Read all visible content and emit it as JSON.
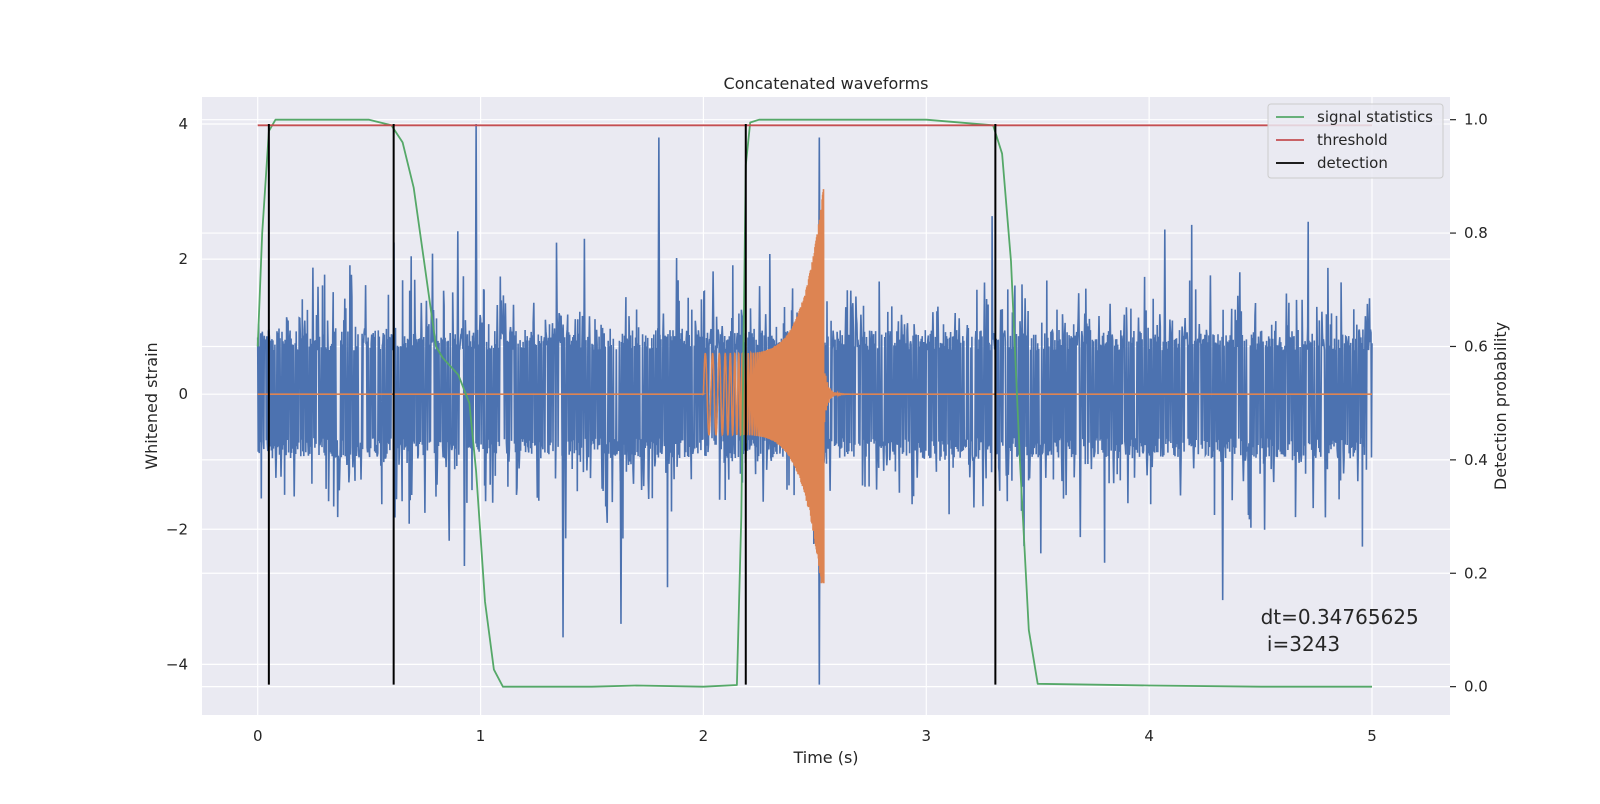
{
  "chart_data": {
    "type": "line",
    "title": "Concatenated waveforms",
    "xlabel": "Time (s)",
    "ylabel": "Whitened strain",
    "y2label": "Detection probability",
    "xlim": [
      -0.25,
      5.35
    ],
    "ylim": [
      -4.75,
      4.4
    ],
    "y2lim": [
      -0.05,
      1.04
    ],
    "xticks": [
      0,
      1,
      2,
      3,
      4,
      5
    ],
    "xtick_labels": [
      "0",
      "1",
      "2",
      "3",
      "4",
      "5"
    ],
    "yticks": [
      4,
      2,
      0,
      -2,
      -4
    ],
    "ytick_labels": [
      "4",
      "2",
      "0",
      "−2",
      "−4"
    ],
    "y2ticks": [
      1.0,
      0.8,
      0.6,
      0.4,
      0.2,
      0.0
    ],
    "y2tick_labels": [
      "1.0",
      "0.8",
      "0.6",
      "0.4",
      "0.2",
      "0.0"
    ],
    "grid": true,
    "legend": {
      "placement": "top-right",
      "entries": [
        {
          "label": "signal statistics",
          "color": "#55a868"
        },
        {
          "label": "threshold",
          "color": "#c44e52"
        },
        {
          "label": "detection",
          "color": "#000000"
        }
      ]
    },
    "annotation": {
      "line1": "dt=0.34765625",
      "line2": " i=3243",
      "x": 4.5,
      "y1": -3.4,
      "y2": -3.8
    },
    "series": [
      {
        "name": "noise",
        "axis": "left",
        "style": "noise",
        "color": "#4c72b0",
        "x_range": [
          0,
          5
        ],
        "band": 2.2,
        "peaks": [
          {
            "x": 0.98,
            "y": 4.0
          },
          {
            "x": 1.8,
            "y": 3.8
          },
          {
            "x": 2.52,
            "y": 3.8
          },
          {
            "x": 2.52,
            "y": -4.3
          },
          {
            "x": 4.33,
            "y": -3.05
          },
          {
            "x": 1.37,
            "y": -3.6
          },
          {
            "x": 1.63,
            "y": -3.4
          }
        ]
      },
      {
        "name": "injected",
        "axis": "left",
        "style": "chirp",
        "color": "#dd8452",
        "x_range": [
          0,
          5
        ],
        "chirp_start": 2.0,
        "chirp_end": 2.54,
        "start_amp": 0.6,
        "peak_amp": 3.1,
        "peak_min": -2.8,
        "ringdown_end": 3.0
      },
      {
        "name": "signal statistics",
        "axis": "right",
        "color": "#55a868",
        "x": [
          0.0,
          0.02,
          0.05,
          0.08,
          0.12,
          0.3,
          0.5,
          0.6,
          0.65,
          0.7,
          0.75,
          0.8,
          0.83,
          0.9,
          0.95,
          0.98,
          1.02,
          1.06,
          1.1,
          1.5,
          1.7,
          2.0,
          2.15,
          2.17,
          2.19,
          2.21,
          2.25,
          2.5,
          3.0,
          3.3,
          3.34,
          3.38,
          3.42,
          3.46,
          3.5,
          4.0,
          4.5,
          5.0
        ],
        "y": [
          0.6,
          0.8,
          0.98,
          1.0,
          1.0,
          1.0,
          1.0,
          0.99,
          0.96,
          0.88,
          0.74,
          0.6,
          0.58,
          0.55,
          0.5,
          0.38,
          0.15,
          0.03,
          0.0,
          0.0,
          0.002,
          0.0,
          0.003,
          0.3,
          0.92,
          0.995,
          1.0,
          1.0,
          1.0,
          0.99,
          0.94,
          0.75,
          0.4,
          0.1,
          0.005,
          0.002,
          0.0,
          0.0
        ]
      },
      {
        "name": "threshold",
        "axis": "right",
        "color": "#c44e52",
        "x": [
          0,
          5
        ],
        "y": [
          0.99,
          0.99
        ]
      }
    ],
    "detections": {
      "label": "detection",
      "color": "#000000",
      "x": [
        0.05,
        0.61,
        2.19,
        3.31
      ],
      "y_range": [
        -4.3,
        4.0
      ]
    }
  }
}
